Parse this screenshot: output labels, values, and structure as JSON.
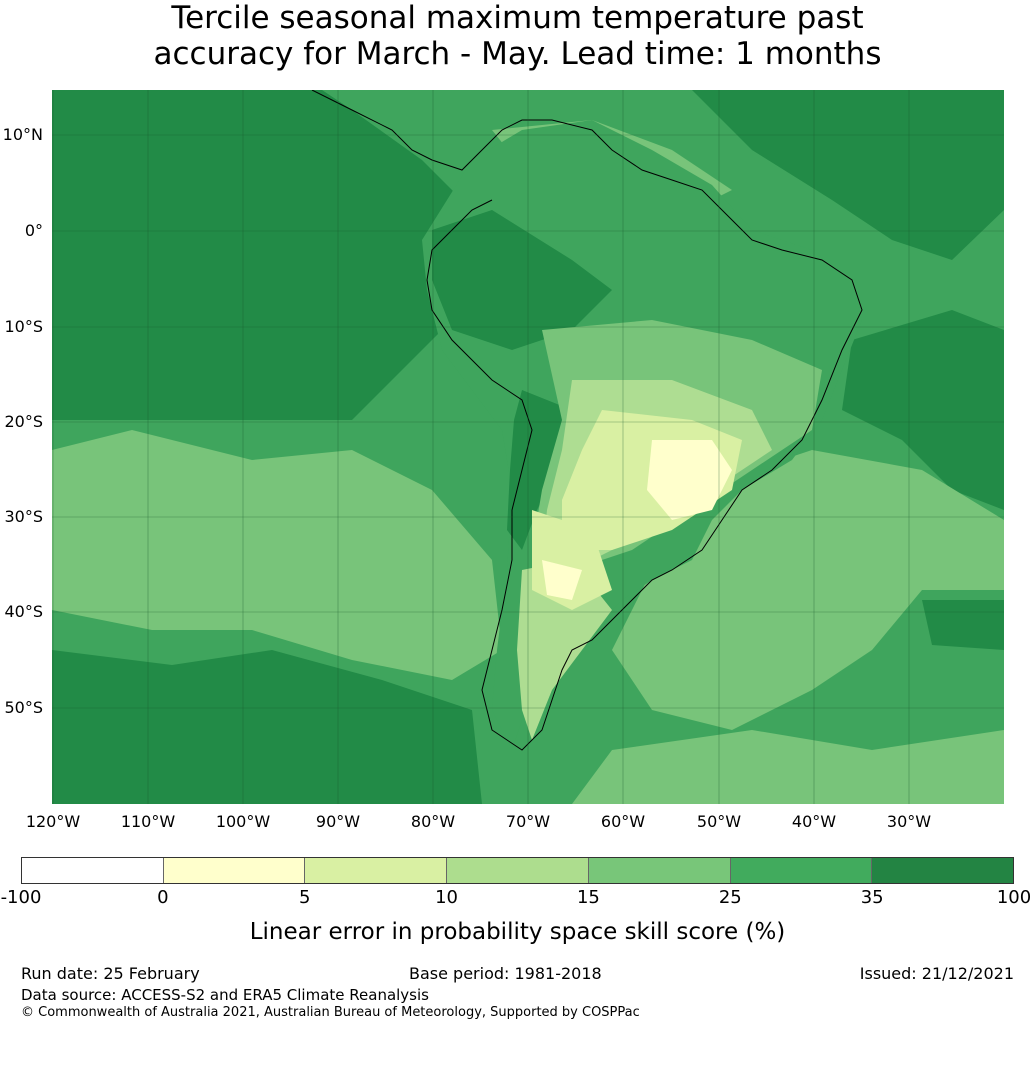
{
  "title": {
    "line1": "Tercile seasonal maximum temperature past",
    "line2": "accuracy for March - May. Lead time: 1 months"
  },
  "map": {
    "lat_labels": [
      "10°N",
      "0°",
      "10°S",
      "20°S",
      "30°S",
      "40°S",
      "50°S"
    ],
    "lon_labels": [
      "120°W",
      "110°W",
      "100°W",
      "90°W",
      "80°W",
      "70°W",
      "60°W",
      "50°W",
      "40°W",
      "30°W"
    ],
    "colors": {
      "ocean": "#3fa55d",
      "dark": "#228b47",
      "mid": "#78c47a",
      "light": "#aedd92",
      "pale": "#d9f0a3",
      "cream": "#ffffcc",
      "white": "#ffffff"
    }
  },
  "colorbar": {
    "ticks": [
      "-100",
      "0",
      "5",
      "10",
      "15",
      "25",
      "35",
      "100"
    ],
    "colors": [
      "#ffffff",
      "#ffffcc",
      "#d9f0a3",
      "#addd8e",
      "#78c679",
      "#41ab5d",
      "#238443"
    ],
    "label": "Linear error in probability space skill score (%)"
  },
  "footer": {
    "run_date": "Run date: 25 February",
    "base_period": "Base period: 1981-2018",
    "issued": "Issued: 21/12/2021",
    "data_source": "Data source: ACCESS-S2 and ERA5 Climate Reanalysis",
    "copyright": "© Commonwealth of Australia 2021, Australian Bureau of Meteorology, Supported by COSPPac"
  }
}
